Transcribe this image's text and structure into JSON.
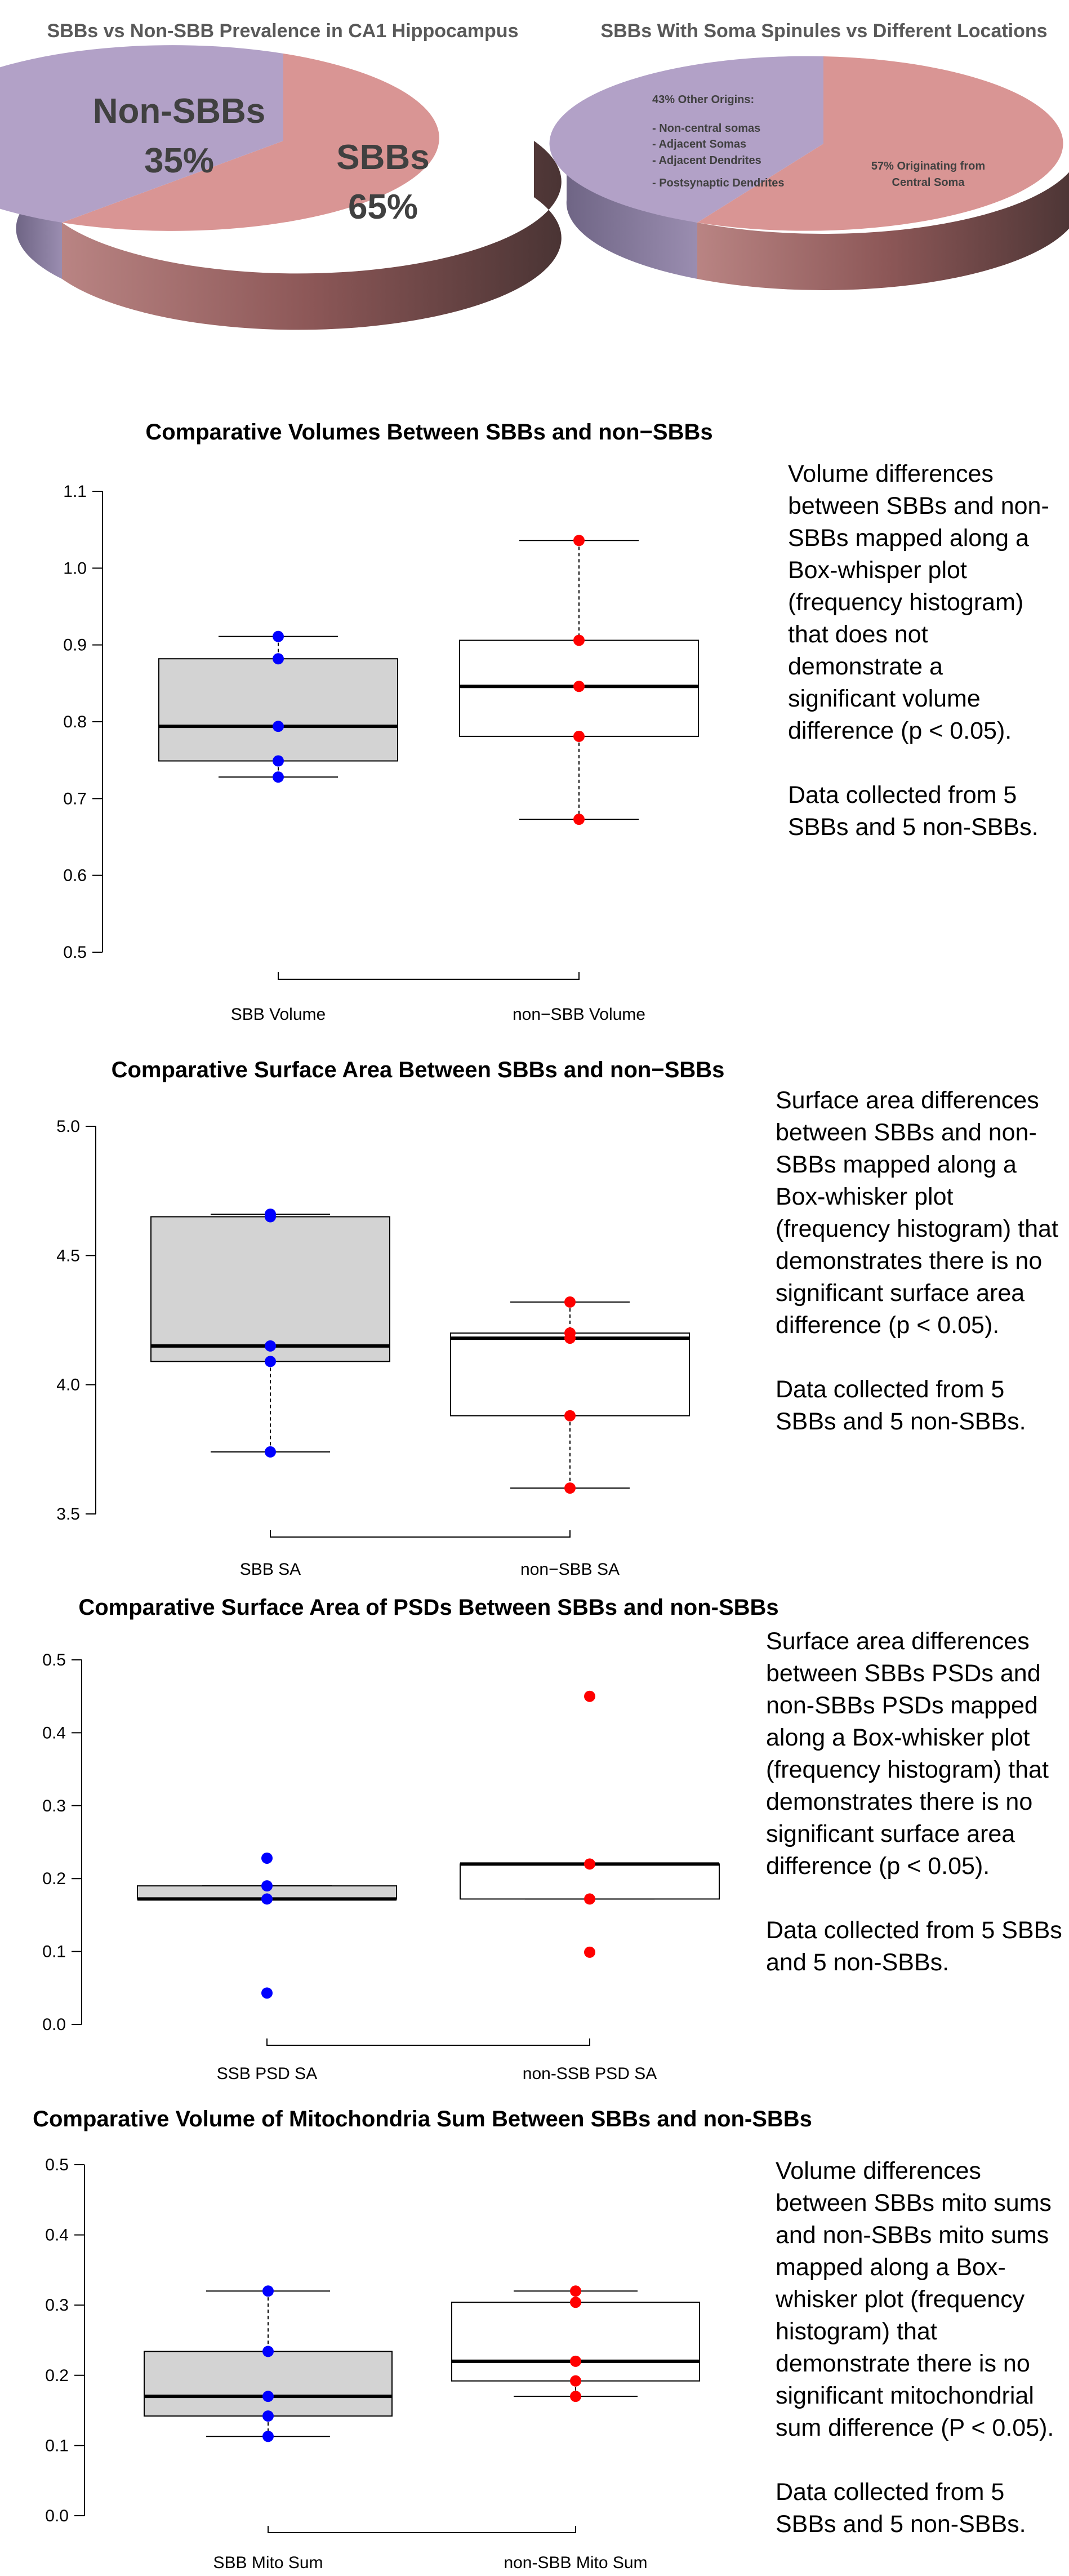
{
  "pies": [
    {
      "title": "SBBs vs Non-SBB Prevalence in CA1 Hippocampus",
      "slices": [
        {
          "label": "SBBs",
          "percent_label": "65%",
          "value": 65,
          "color": "#d99594"
        },
        {
          "label": "Non-SBBs",
          "percent_label": "35%",
          "value": 35,
          "color": "#b2a1c7"
        }
      ]
    },
    {
      "title": "SBBs With Soma Spinules vs Different Locations",
      "slices": [
        {
          "label": "57% Originating from",
          "label2": "Central Soma",
          "value": 57,
          "color": "#d99594"
        },
        {
          "label": "43% Other Origins:",
          "value": 43,
          "color": "#b2a1c7",
          "list": [
            "- Non-central somas",
            "- Adjacent Somas",
            "- Adjacent Dendrites",
            "- Postsynaptic Dendrites"
          ]
        }
      ]
    }
  ],
  "chart_data": [
    {
      "type": "box",
      "title": "Comparative Volumes Between SBBs and non−SBBs",
      "categories": [
        "SBB Volume",
        "non−SBB Volume"
      ],
      "ylim": [
        0.5,
        1.1
      ],
      "yticks": [
        "0.5",
        "0.6",
        "0.7",
        "0.8",
        "0.9",
        "1.0",
        "1.1"
      ],
      "ytick_values": [
        0.5,
        0.6,
        0.7,
        0.8,
        0.9,
        1.0,
        1.1
      ],
      "boxes": [
        {
          "min": 0.728,
          "q1": 0.749,
          "median": 0.794,
          "q3": 0.882,
          "max": 0.911,
          "fill": "#d3d3d3"
        },
        {
          "min": 0.673,
          "q1": 0.781,
          "median": 0.846,
          "q3": 0.906,
          "max": 1.036,
          "fill": "#ffffff"
        }
      ],
      "series": [
        {
          "name": "SBB Volume",
          "color": "#0000ff",
          "values": [
            0.911,
            0.882,
            0.794,
            0.749,
            0.728
          ]
        },
        {
          "name": "non−SBB Volume",
          "color": "#ff0000",
          "values": [
            1.036,
            0.906,
            0.846,
            0.781,
            0.673
          ]
        }
      ],
      "grid": false,
      "note": [
        "Volume differences between SBBs and non-SBBs mapped along a Box-whisper plot (frequency histogram) that does not demonstrate a significant volume difference (p < 0.05).",
        "Data collected from 5 SBBs and 5 non-SBBs."
      ]
    },
    {
      "type": "box",
      "title": "Comparative Surface Area Between SBBs and non−SBBs",
      "categories": [
        "SBB SA",
        "non−SBB SA"
      ],
      "ylim": [
        3.5,
        5.0
      ],
      "yticks": [
        "3.5",
        "4.0",
        "4.5",
        "5.0"
      ],
      "ytick_values": [
        3.5,
        4.0,
        4.5,
        5.0
      ],
      "boxes": [
        {
          "min": 3.74,
          "q1": 4.09,
          "median": 4.15,
          "q3": 4.65,
          "max": 4.66,
          "fill": "#d3d3d3"
        },
        {
          "min": 3.6,
          "q1": 3.88,
          "median": 4.18,
          "q3": 4.2,
          "max": 4.32,
          "fill": "#ffffff"
        }
      ],
      "series": [
        {
          "name": "SBB SA",
          "color": "#0000ff",
          "values": [
            4.66,
            4.65,
            4.15,
            4.09,
            3.74
          ]
        },
        {
          "name": "non−SBB SA",
          "color": "#ff0000",
          "values": [
            4.32,
            4.2,
            4.18,
            3.88,
            3.6
          ]
        }
      ],
      "grid": false,
      "note": [
        "Surface area differences between SBBs and non-SBBs mapped along a Box-whisker plot (frequency histogram) that demonstrates there is no significant surface area difference (p < 0.05).",
        "Data collected from 5 SBBs and 5 non-SBBs."
      ]
    },
    {
      "type": "box",
      "title": "Comparative Surface Area of PSDs Between SBBs and non-SBBs",
      "categories": [
        "SSB PSD SA",
        "non-SSB PSD SA"
      ],
      "ylim": [
        0.0,
        0.5
      ],
      "yticks": [
        "0.0",
        "0.1",
        "0.2",
        "0.3",
        "0.4",
        "0.5"
      ],
      "ytick_values": [
        0.0,
        0.1,
        0.2,
        0.3,
        0.4,
        0.5
      ],
      "boxes": [
        {
          "min": 0.172,
          "q1": 0.172,
          "median": 0.172,
          "q3": 0.19,
          "max": 0.19,
          "fill": "#d3d3d3"
        },
        {
          "min": 0.172,
          "q1": 0.172,
          "median": 0.22,
          "q3": 0.22,
          "max": 0.22,
          "fill": "#ffffff"
        }
      ],
      "series": [
        {
          "name": "SSB PSD SA",
          "color": "#0000ff",
          "values": [
            0.228,
            0.19,
            0.172,
            0.043
          ]
        },
        {
          "name": "non-SSB PSD SA",
          "color": "#ff0000",
          "values": [
            0.45,
            0.22,
            0.172,
            0.099
          ]
        }
      ],
      "grid": false,
      "note": [
        "Surface area differences between SBBs PSDs and non-SBBs PSDs mapped along a Box-whisker plot (frequency histogram) that demonstrates there is no significant surface area difference (p < 0.05).",
        "Data collected from 5 SBBs and 5 non-SBBs."
      ]
    },
    {
      "type": "box",
      "title": "Comparative Volume of Mitochondria Sum Between SBBs and non-SBBs",
      "categories": [
        "SBB Mito Sum",
        "non-SBB Mito Sum"
      ],
      "ylim": [
        0.0,
        0.5
      ],
      "yticks": [
        "0.0",
        "0.1",
        "0.2",
        "0.3",
        "0.4",
        "0.5"
      ],
      "ytick_values": [
        0.0,
        0.1,
        0.2,
        0.3,
        0.4,
        0.5
      ],
      "boxes": [
        {
          "min": 0.113,
          "q1": 0.142,
          "median": 0.17,
          "q3": 0.234,
          "max": 0.32,
          "fill": "#d3d3d3"
        },
        {
          "min": 0.17,
          "q1": 0.192,
          "median": 0.22,
          "q3": 0.304,
          "max": 0.32,
          "fill": "#ffffff"
        }
      ],
      "series": [
        {
          "name": "SBB Mito Sum",
          "color": "#0000ff",
          "values": [
            0.32,
            0.234,
            0.17,
            0.142,
            0.113
          ]
        },
        {
          "name": "non-SBB Mito Sum",
          "color": "#ff0000",
          "values": [
            0.32,
            0.304,
            0.22,
            0.192,
            0.17
          ]
        }
      ],
      "grid": false,
      "note": [
        "Volume differences between SBBs mito sums and non-SBBs mito sums mapped along a Box-whisker plot (frequency histogram) that demonstrate there is no significant mitochondrial sum difference (P < 0.05).",
        "Data collected from 5 SBBs and 5 non-SBBs."
      ]
    }
  ]
}
